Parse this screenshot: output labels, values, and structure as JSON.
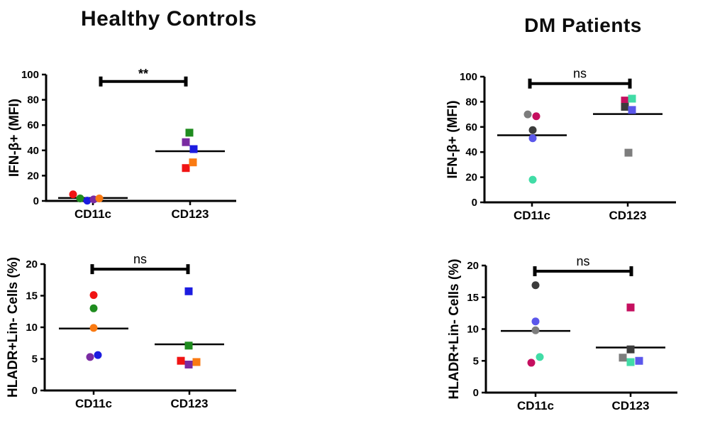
{
  "figure": {
    "background": "#ffffff",
    "axis_color": "#000000",
    "group_titles": [
      "Healthy Controls",
      "DM Patients"
    ]
  },
  "chart_data": [
    {
      "type": "scatter",
      "title": "Healthy Controls",
      "ylabel": "IFN-β+ (MFI)",
      "ylim": [
        0,
        100
      ],
      "yticks": [
        0,
        20,
        40,
        60,
        80,
        100
      ],
      "categories": [
        "CD11c",
        "CD123"
      ],
      "markers": [
        "circle",
        "square"
      ],
      "significance": {
        "label": "**",
        "y": 94.5
      },
      "medians": [
        2.3,
        39.3
      ],
      "series": [
        {
          "name": "CD11c",
          "points": [
            {
              "value": 5.2,
              "dx": -28,
              "color": "#F01414"
            },
            {
              "value": 2.0,
              "dx": -18,
              "color": "#1F8C1F"
            },
            {
              "value": 0.2,
              "dx": -8,
              "color": "#1C1CE0"
            },
            {
              "value": 1.2,
              "dx": 1,
              "color": "#7A2BA2"
            },
            {
              "value": 2.0,
              "dx": 9,
              "color": "#FA7A12"
            }
          ]
        },
        {
          "name": "CD123",
          "points": [
            {
              "value": 26.0,
              "dx": -6,
              "color": "#F01414"
            },
            {
              "value": 30.5,
              "dx": 4,
              "color": "#FA7A12"
            },
            {
              "value": 41.0,
              "dx": 5,
              "color": "#1C1CE0"
            },
            {
              "value": 46.5,
              "dx": -6,
              "color": "#7A2BA2"
            },
            {
              "value": 54.0,
              "dx": -1,
              "color": "#1F8C1F"
            }
          ]
        }
      ]
    },
    {
      "type": "scatter",
      "title": "DM Patients",
      "ylabel": "IFN-β+ (MFI)",
      "ylim": [
        0,
        100
      ],
      "yticks": [
        0,
        20,
        40,
        60,
        80,
        100
      ],
      "categories": [
        "CD11c",
        "CD123"
      ],
      "markers": [
        "circle",
        "square"
      ],
      "significance": {
        "label": "ns",
        "y": 94.5
      },
      "medians": [
        53.4,
        70.3
      ],
      "series": [
        {
          "name": "CD11c",
          "points": [
            {
              "value": 70.0,
              "dx": -6,
              "color": "#7D7D7D"
            },
            {
              "value": 68.5,
              "dx": 6,
              "color": "#C50F5F"
            },
            {
              "value": 57.5,
              "dx": 1,
              "color": "#3C3C3C"
            },
            {
              "value": 51.0,
              "dx": 1,
              "color": "#5B57EB"
            },
            {
              "value": 18.0,
              "dx": 1,
              "color": "#41DCA6"
            }
          ]
        },
        {
          "name": "CD123",
          "points": [
            {
              "value": 81.0,
              "dx": -4,
              "color": "#C50F5F"
            },
            {
              "value": 82.5,
              "dx": 6,
              "color": "#41DCA6"
            },
            {
              "value": 76.0,
              "dx": -4,
              "color": "#3C3C3C"
            },
            {
              "value": 73.5,
              "dx": 6,
              "color": "#5B57EB"
            },
            {
              "value": 39.5,
              "dx": 1,
              "color": "#7D7D7D"
            }
          ]
        }
      ]
    },
    {
      "type": "scatter",
      "title": "",
      "ylabel": "HLADR+Lin- Cells (%)",
      "ylim": [
        0,
        20
      ],
      "yticks": [
        0,
        5,
        10,
        15,
        20
      ],
      "categories": [
        "CD11c",
        "CD123"
      ],
      "markers": [
        "circle",
        "square"
      ],
      "significance": {
        "label": "ns",
        "y": 19.2
      },
      "medians": [
        9.8,
        7.3
      ],
      "series": [
        {
          "name": "CD11c",
          "points": [
            {
              "value": 15.1,
              "dx": 0,
              "color": "#F01414"
            },
            {
              "value": 13.0,
              "dx": 0,
              "color": "#1F8C1F"
            },
            {
              "value": 9.9,
              "dx": 0,
              "color": "#FA7A12"
            },
            {
              "value": 5.3,
              "dx": -5,
              "color": "#7A2BA2"
            },
            {
              "value": 5.6,
              "dx": 6,
              "color": "#1C1CE0"
            }
          ]
        },
        {
          "name": "CD123",
          "points": [
            {
              "value": 15.7,
              "dx": -1,
              "color": "#1C1CE0"
            },
            {
              "value": 7.1,
              "dx": -1,
              "color": "#1F8C1F"
            },
            {
              "value": 4.7,
              "dx": -12,
              "color": "#F01414"
            },
            {
              "value": 4.1,
              "dx": -1,
              "color": "#7A2BA2"
            },
            {
              "value": 4.5,
              "dx": 10,
              "color": "#FA7A12"
            }
          ]
        }
      ]
    },
    {
      "type": "scatter",
      "title": "",
      "ylabel": "HLADR+Lin- Cells (%)",
      "ylim": [
        0,
        20
      ],
      "yticks": [
        0,
        5,
        10,
        15,
        20
      ],
      "categories": [
        "CD11c",
        "CD123"
      ],
      "markers": [
        "circle",
        "square"
      ],
      "significance": {
        "label": "ns",
        "y": 19.1
      },
      "medians": [
        9.7,
        7.1
      ],
      "series": [
        {
          "name": "CD11c",
          "points": [
            {
              "value": 16.9,
              "dx": 0,
              "color": "#3C3C3C"
            },
            {
              "value": 11.2,
              "dx": 0,
              "color": "#5B57EB"
            },
            {
              "value": 9.8,
              "dx": 0,
              "color": "#7D7D7D"
            },
            {
              "value": 5.6,
              "dx": 6,
              "color": "#41DCA6"
            },
            {
              "value": 4.7,
              "dx": -6,
              "color": "#C50F5F"
            }
          ]
        },
        {
          "name": "CD123",
          "points": [
            {
              "value": 13.4,
              "dx": 0,
              "color": "#C50F5F"
            },
            {
              "value": 6.8,
              "dx": 0,
              "color": "#3C3C3C"
            },
            {
              "value": 5.5,
              "dx": -11,
              "color": "#7D7D7D"
            },
            {
              "value": 4.8,
              "dx": 0,
              "color": "#41DCA6"
            },
            {
              "value": 5.0,
              "dx": 12,
              "color": "#5B57EB"
            }
          ]
        }
      ]
    }
  ]
}
